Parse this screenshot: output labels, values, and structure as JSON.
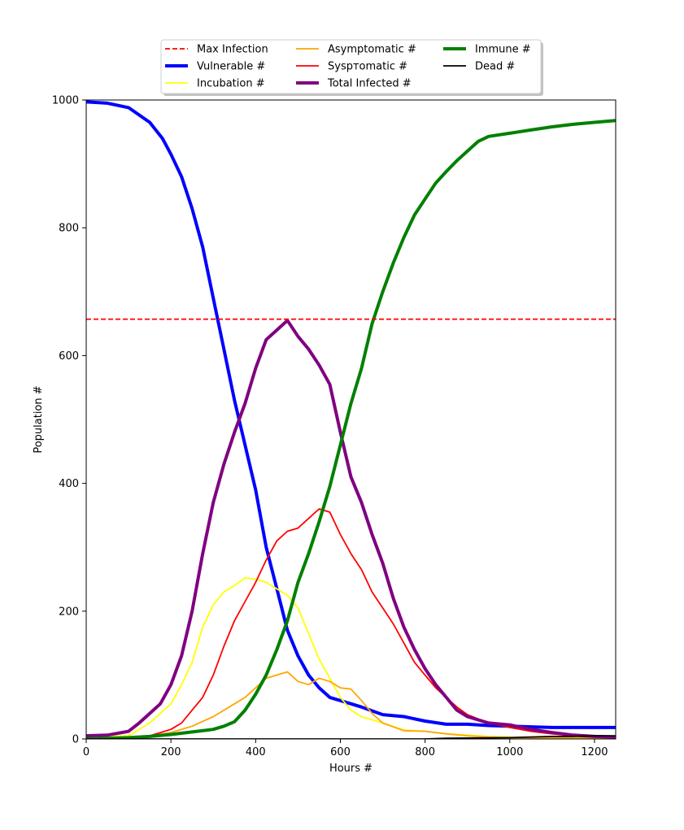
{
  "chart_data": {
    "type": "line",
    "xlabel": "Hours #",
    "ylabel": "Population #",
    "xlim": [
      0,
      1250
    ],
    "ylim": [
      0,
      1000
    ],
    "xticks": [
      0,
      200,
      400,
      600,
      800,
      1000,
      1200
    ],
    "yticks": [
      0,
      200,
      400,
      600,
      800,
      1000
    ],
    "grid": false,
    "legend_position": "top-center",
    "max_infection": {
      "name": "Max Infection",
      "value": 657,
      "color": "#ff0000",
      "style": "dashed"
    },
    "series": [
      {
        "name": "Vulnerable #",
        "color": "#0000ff",
        "width": "thick",
        "points": [
          [
            0,
            997
          ],
          [
            50,
            995
          ],
          [
            100,
            988
          ],
          [
            150,
            965
          ],
          [
            180,
            940
          ],
          [
            200,
            915
          ],
          [
            225,
            880
          ],
          [
            250,
            830
          ],
          [
            275,
            770
          ],
          [
            300,
            690
          ],
          [
            325,
            610
          ],
          [
            350,
            530
          ],
          [
            375,
            460
          ],
          [
            400,
            390
          ],
          [
            425,
            300
          ],
          [
            450,
            235
          ],
          [
            475,
            170
          ],
          [
            500,
            130
          ],
          [
            525,
            100
          ],
          [
            550,
            80
          ],
          [
            575,
            65
          ],
          [
            600,
            60
          ],
          [
            650,
            50
          ],
          [
            700,
            38
          ],
          [
            750,
            35
          ],
          [
            800,
            28
          ],
          [
            850,
            23
          ],
          [
            900,
            23
          ],
          [
            950,
            21
          ],
          [
            1000,
            20
          ],
          [
            1050,
            19
          ],
          [
            1100,
            18
          ],
          [
            1150,
            18
          ],
          [
            1200,
            18
          ],
          [
            1250,
            18
          ]
        ]
      },
      {
        "name": "Incubation #",
        "color": "#ffff00",
        "width": "normal",
        "points": [
          [
            0,
            3
          ],
          [
            100,
            5
          ],
          [
            150,
            25
          ],
          [
            200,
            55
          ],
          [
            225,
            85
          ],
          [
            250,
            120
          ],
          [
            275,
            175
          ],
          [
            300,
            210
          ],
          [
            325,
            230
          ],
          [
            350,
            240
          ],
          [
            375,
            252
          ],
          [
            400,
            250
          ],
          [
            425,
            245
          ],
          [
            450,
            235
          ],
          [
            475,
            225
          ],
          [
            500,
            205
          ],
          [
            525,
            165
          ],
          [
            550,
            125
          ],
          [
            575,
            95
          ],
          [
            600,
            65
          ],
          [
            625,
            45
          ],
          [
            650,
            35
          ],
          [
            700,
            25
          ],
          [
            750,
            14
          ],
          [
            800,
            12
          ],
          [
            850,
            8
          ],
          [
            900,
            6
          ],
          [
            950,
            4
          ],
          [
            1000,
            3
          ],
          [
            1050,
            2
          ],
          [
            1100,
            2
          ],
          [
            1250,
            1
          ]
        ]
      },
      {
        "name": "Asymptomatic #",
        "color": "#ffa500",
        "width": "normal",
        "points": [
          [
            0,
            0
          ],
          [
            100,
            2
          ],
          [
            150,
            5
          ],
          [
            200,
            10
          ],
          [
            250,
            20
          ],
          [
            300,
            35
          ],
          [
            350,
            55
          ],
          [
            375,
            65
          ],
          [
            400,
            80
          ],
          [
            425,
            95
          ],
          [
            450,
            100
          ],
          [
            475,
            105
          ],
          [
            500,
            90
          ],
          [
            525,
            85
          ],
          [
            550,
            95
          ],
          [
            575,
            90
          ],
          [
            600,
            80
          ],
          [
            625,
            78
          ],
          [
            650,
            60
          ],
          [
            675,
            40
          ],
          [
            700,
            25
          ],
          [
            750,
            13
          ],
          [
            800,
            12
          ],
          [
            850,
            8
          ],
          [
            900,
            5
          ],
          [
            950,
            3
          ],
          [
            1000,
            2
          ],
          [
            1250,
            1
          ]
        ]
      },
      {
        "name": "Syspтomatic #",
        "color": "#ff0000",
        "width": "normal",
        "points": [
          [
            0,
            0
          ],
          [
            100,
            2
          ],
          [
            150,
            5
          ],
          [
            200,
            15
          ],
          [
            225,
            25
          ],
          [
            250,
            45
          ],
          [
            275,
            65
          ],
          [
            300,
            100
          ],
          [
            325,
            145
          ],
          [
            350,
            185
          ],
          [
            375,
            215
          ],
          [
            400,
            245
          ],
          [
            425,
            280
          ],
          [
            450,
            310
          ],
          [
            475,
            325
          ],
          [
            500,
            330
          ],
          [
            525,
            345
          ],
          [
            550,
            360
          ],
          [
            575,
            355
          ],
          [
            600,
            320
          ],
          [
            625,
            290
          ],
          [
            650,
            265
          ],
          [
            675,
            230
          ],
          [
            700,
            205
          ],
          [
            725,
            180
          ],
          [
            750,
            150
          ],
          [
            775,
            120
          ],
          [
            800,
            100
          ],
          [
            825,
            80
          ],
          [
            850,
            65
          ],
          [
            875,
            50
          ],
          [
            900,
            38
          ],
          [
            950,
            25
          ],
          [
            1000,
            18
          ],
          [
            1050,
            12
          ],
          [
            1100,
            8
          ],
          [
            1150,
            5
          ],
          [
            1200,
            3
          ],
          [
            1250,
            2
          ]
        ]
      },
      {
        "name": "Total Infected #",
        "color": "#800080",
        "width": "thick",
        "points": [
          [
            0,
            5
          ],
          [
            50,
            6
          ],
          [
            100,
            12
          ],
          [
            125,
            25
          ],
          [
            150,
            40
          ],
          [
            175,
            55
          ],
          [
            200,
            85
          ],
          [
            225,
            130
          ],
          [
            250,
            200
          ],
          [
            275,
            290
          ],
          [
            300,
            370
          ],
          [
            325,
            430
          ],
          [
            350,
            480
          ],
          [
            375,
            525
          ],
          [
            400,
            580
          ],
          [
            425,
            625
          ],
          [
            450,
            640
          ],
          [
            475,
            655
          ],
          [
            500,
            630
          ],
          [
            525,
            610
          ],
          [
            550,
            585
          ],
          [
            575,
            555
          ],
          [
            600,
            480
          ],
          [
            625,
            410
          ],
          [
            650,
            370
          ],
          [
            675,
            320
          ],
          [
            700,
            275
          ],
          [
            725,
            220
          ],
          [
            750,
            175
          ],
          [
            775,
            140
          ],
          [
            800,
            110
          ],
          [
            825,
            85
          ],
          [
            850,
            65
          ],
          [
            875,
            45
          ],
          [
            900,
            35
          ],
          [
            950,
            25
          ],
          [
            1000,
            22
          ],
          [
            1050,
            15
          ],
          [
            1100,
            10
          ],
          [
            1150,
            6
          ],
          [
            1200,
            4
          ],
          [
            1250,
            3
          ]
        ]
      },
      {
        "name": "Immune #",
        "color": "#008000",
        "width": "thick",
        "points": [
          [
            0,
            0
          ],
          [
            100,
            2
          ],
          [
            150,
            4
          ],
          [
            200,
            7
          ],
          [
            250,
            11
          ],
          [
            300,
            15
          ],
          [
            325,
            20
          ],
          [
            350,
            27
          ],
          [
            375,
            45
          ],
          [
            400,
            70
          ],
          [
            425,
            100
          ],
          [
            450,
            140
          ],
          [
            475,
            185
          ],
          [
            500,
            245
          ],
          [
            525,
            290
          ],
          [
            550,
            340
          ],
          [
            575,
            395
          ],
          [
            600,
            460
          ],
          [
            625,
            525
          ],
          [
            650,
            580
          ],
          [
            675,
            650
          ],
          [
            700,
            700
          ],
          [
            725,
            745
          ],
          [
            750,
            785
          ],
          [
            775,
            820
          ],
          [
            800,
            845
          ],
          [
            825,
            870
          ],
          [
            850,
            888
          ],
          [
            875,
            905
          ],
          [
            900,
            920
          ],
          [
            925,
            935
          ],
          [
            950,
            943
          ],
          [
            1000,
            948
          ],
          [
            1050,
            953
          ],
          [
            1100,
            958
          ],
          [
            1150,
            962
          ],
          [
            1200,
            965
          ],
          [
            1250,
            968
          ]
        ]
      },
      {
        "name": "Dead #",
        "color": "#000000",
        "width": "normal",
        "points": [
          [
            0,
            0
          ],
          [
            800,
            0
          ],
          [
            850,
            1
          ],
          [
            1000,
            2
          ],
          [
            1050,
            3
          ],
          [
            1100,
            4
          ],
          [
            1150,
            4
          ],
          [
            1200,
            5
          ],
          [
            1250,
            5
          ]
        ]
      }
    ]
  }
}
